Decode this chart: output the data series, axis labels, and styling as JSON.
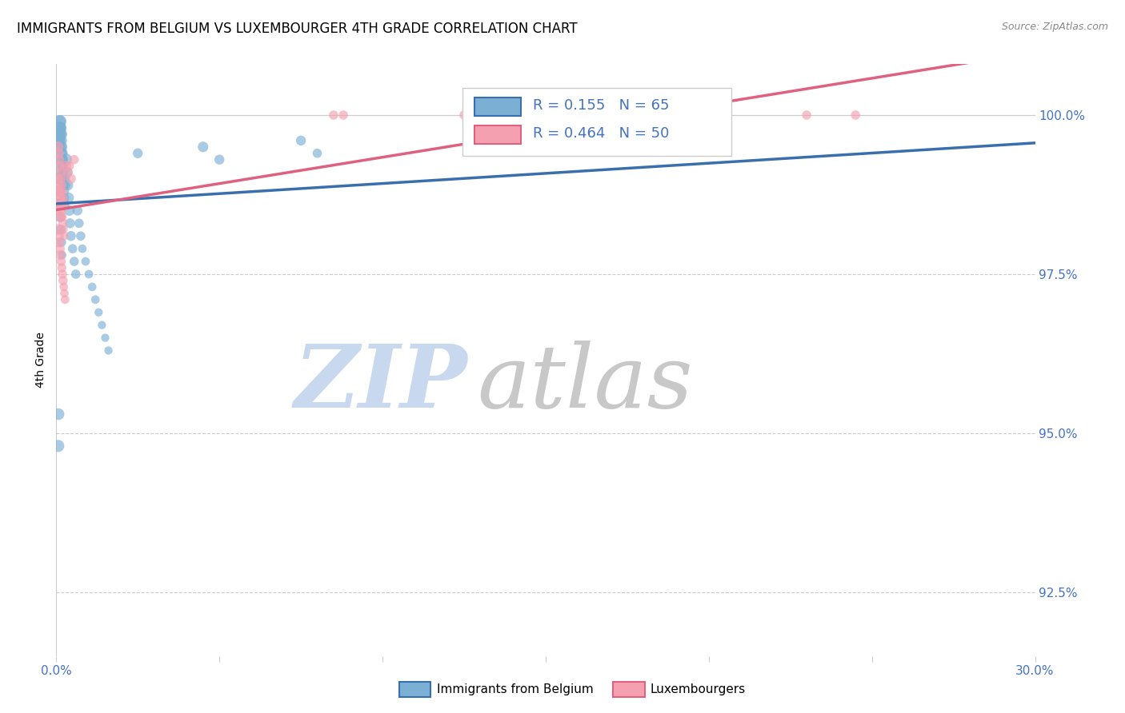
{
  "title": "IMMIGRANTS FROM BELGIUM VS LUXEMBOURGER 4TH GRADE CORRELATION CHART",
  "source_text": "Source: ZipAtlas.com",
  "ylabel": "4th Grade",
  "xlim": [
    0.0,
    30.0
  ],
  "ylim": [
    91.5,
    100.8
  ],
  "ytick_positions": [
    92.5,
    95.0,
    97.5,
    100.0
  ],
  "ytick_labels": [
    "92.5%",
    "95.0%",
    "97.5%",
    "100.0%"
  ],
  "xtick_positions": [
    0.0,
    5.0,
    10.0,
    15.0,
    20.0,
    25.0,
    30.0
  ],
  "xtick_labels": [
    "0.0%",
    "",
    "",
    "",
    "",
    "",
    "30.0%"
  ],
  "blue_R": 0.155,
  "blue_N": 65,
  "pink_R": 0.464,
  "pink_N": 50,
  "blue_color": "#7bafd4",
  "pink_color": "#f4a0b0",
  "blue_line_color": "#3a6faf",
  "pink_line_color": "#e06080",
  "legend_blue_label": "Immigrants from Belgium",
  "legend_pink_label": "Luxembourgers",
  "watermark_zip": "ZIP",
  "watermark_atlas": "atlas",
  "watermark_color_zip": "#c8d8ee",
  "watermark_color_atlas": "#c8c8c8",
  "title_fontsize": 12,
  "axis_label_color": "#4472c4",
  "grid_color": "#cccccc",
  "blue_x": [
    0.05,
    0.07,
    0.08,
    0.09,
    0.1,
    0.1,
    0.11,
    0.12,
    0.12,
    0.13,
    0.13,
    0.14,
    0.15,
    0.15,
    0.16,
    0.17,
    0.18,
    0.19,
    0.2,
    0.2,
    0.21,
    0.22,
    0.23,
    0.24,
    0.25,
    0.26,
    0.27,
    0.28,
    0.3,
    0.32,
    0.35,
    0.38,
    0.4,
    0.42,
    0.45,
    0.5,
    0.55,
    0.6,
    0.65,
    0.7,
    0.75,
    0.8,
    0.9,
    1.0,
    1.1,
    1.2,
    1.3,
    1.4,
    1.5,
    1.6,
    0.06,
    0.08,
    0.1,
    0.12,
    0.14,
    0.16,
    0.18,
    2.5,
    4.5,
    5.0,
    7.5,
    8.0,
    0.05,
    0.06,
    0.07
  ],
  "blue_y": [
    99.5,
    99.6,
    99.7,
    99.8,
    99.9,
    99.7,
    99.8,
    99.9,
    99.6,
    99.7,
    99.8,
    99.5,
    99.6,
    99.7,
    99.4,
    99.5,
    99.3,
    99.4,
    99.2,
    99.3,
    99.1,
    99.0,
    98.9,
    98.8,
    98.7,
    98.6,
    99.0,
    98.9,
    99.3,
    99.1,
    98.9,
    98.7,
    98.5,
    98.3,
    98.1,
    97.9,
    97.7,
    97.5,
    98.5,
    98.3,
    98.1,
    97.9,
    97.7,
    97.5,
    97.3,
    97.1,
    96.9,
    96.7,
    96.5,
    96.3,
    99.0,
    98.8,
    98.6,
    98.4,
    98.2,
    98.0,
    97.8,
    99.4,
    99.5,
    99.3,
    99.6,
    99.4,
    99.2,
    94.8,
    95.3
  ],
  "blue_size": [
    150,
    120,
    130,
    140,
    120,
    110,
    120,
    130,
    100,
    110,
    120,
    100,
    110,
    120,
    100,
    100,
    90,
    90,
    90,
    90,
    80,
    80,
    80,
    80,
    70,
    70,
    80,
    80,
    120,
    110,
    100,
    90,
    90,
    80,
    80,
    70,
    70,
    70,
    80,
    70,
    70,
    60,
    60,
    60,
    60,
    60,
    55,
    55,
    55,
    55,
    120,
    110,
    100,
    90,
    80,
    70,
    60,
    80,
    90,
    80,
    80,
    70,
    300,
    120,
    110
  ],
  "pink_x": [
    0.05,
    0.07,
    0.09,
    0.11,
    0.13,
    0.15,
    0.17,
    0.19,
    0.21,
    0.23,
    0.06,
    0.08,
    0.1,
    0.12,
    0.14,
    0.16,
    0.18,
    0.2,
    0.22,
    0.24,
    0.04,
    0.06,
    0.08,
    0.1,
    0.12,
    0.35,
    0.4,
    0.05,
    0.07,
    0.09,
    0.11,
    0.13,
    0.15,
    0.17,
    0.3,
    0.19,
    0.21,
    0.23,
    0.25,
    0.27,
    0.45,
    0.55,
    8.5,
    8.8,
    12.5,
    13.0,
    16.0,
    20.5,
    23.0,
    24.5
  ],
  "pink_y": [
    99.5,
    99.4,
    99.3,
    99.2,
    99.1,
    99.0,
    98.9,
    98.8,
    98.7,
    98.6,
    99.0,
    98.9,
    98.8,
    98.7,
    98.6,
    98.5,
    98.4,
    98.3,
    98.2,
    98.1,
    98.8,
    98.7,
    98.6,
    98.5,
    98.4,
    99.1,
    99.2,
    98.2,
    98.1,
    98.0,
    97.9,
    97.8,
    97.7,
    97.6,
    99.2,
    97.5,
    97.4,
    97.3,
    97.2,
    97.1,
    99.0,
    99.3,
    100.0,
    100.0,
    100.0,
    100.0,
    100.0,
    100.0,
    100.0,
    100.0
  ],
  "pink_size": [
    100,
    90,
    80,
    80,
    80,
    70,
    70,
    70,
    70,
    70,
    90,
    80,
    80,
    80,
    80,
    70,
    70,
    70,
    60,
    60,
    120,
    110,
    100,
    90,
    80,
    80,
    70,
    100,
    90,
    80,
    80,
    80,
    70,
    70,
    90,
    70,
    70,
    60,
    60,
    60,
    80,
    70,
    70,
    70,
    70,
    70,
    70,
    70,
    70,
    70
  ]
}
